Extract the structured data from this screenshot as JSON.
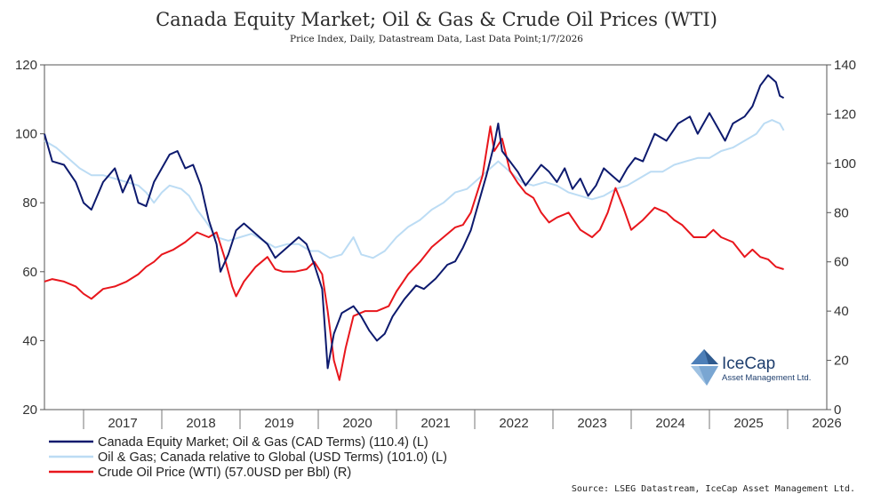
{
  "chart_data": {
    "type": "line",
    "title": "Canada Equity Market; Oil & Gas & Crude Oil Prices (WTI)",
    "subtitle": "Price Index, Daily, Datastream Data, Last Data Point;1/7/2026",
    "x_ticks": [
      "2017",
      "2018",
      "2019",
      "2020",
      "2021",
      "2022",
      "2023",
      "2024",
      "2025",
      "2026"
    ],
    "x_range": [
      2016.5,
      2026.5
    ],
    "y_left": {
      "range": [
        20,
        120
      ],
      "ticks": [
        20,
        40,
        60,
        80,
        100,
        120
      ]
    },
    "y_right": {
      "range": [
        0,
        140
      ],
      "ticks": [
        0,
        20,
        40,
        60,
        80,
        100,
        120,
        140
      ]
    },
    "grid": false,
    "legend_position": "bottom-left",
    "series": [
      {
        "name": "Canada Equity Market; Oil & Gas (CAD Terms) (110.4) (L)",
        "axis": "left",
        "color": "#0d1a6e",
        "points": [
          [
            2016.5,
            100
          ],
          [
            2016.6,
            92
          ],
          [
            2016.75,
            91
          ],
          [
            2016.9,
            86
          ],
          [
            2017.0,
            80
          ],
          [
            2017.1,
            78
          ],
          [
            2017.25,
            86
          ],
          [
            2017.4,
            90
          ],
          [
            2017.5,
            83
          ],
          [
            2017.6,
            88
          ],
          [
            2017.7,
            80
          ],
          [
            2017.8,
            79
          ],
          [
            2017.9,
            86
          ],
          [
            2018.0,
            90
          ],
          [
            2018.1,
            94
          ],
          [
            2018.2,
            95
          ],
          [
            2018.3,
            90
          ],
          [
            2018.4,
            91
          ],
          [
            2018.5,
            85
          ],
          [
            2018.6,
            75
          ],
          [
            2018.7,
            68
          ],
          [
            2018.75,
            60
          ],
          [
            2018.85,
            65
          ],
          [
            2018.95,
            72
          ],
          [
            2019.05,
            74
          ],
          [
            2019.15,
            72
          ],
          [
            2019.25,
            70
          ],
          [
            2019.35,
            68
          ],
          [
            2019.45,
            64
          ],
          [
            2019.55,
            66
          ],
          [
            2019.65,
            68
          ],
          [
            2019.75,
            70
          ],
          [
            2019.85,
            68
          ],
          [
            2019.95,
            62
          ],
          [
            2020.05,
            55
          ],
          [
            2020.12,
            32
          ],
          [
            2020.2,
            42
          ],
          [
            2020.3,
            48
          ],
          [
            2020.45,
            50
          ],
          [
            2020.55,
            47
          ],
          [
            2020.65,
            43
          ],
          [
            2020.75,
            40
          ],
          [
            2020.85,
            42
          ],
          [
            2020.95,
            47
          ],
          [
            2021.1,
            52
          ],
          [
            2021.25,
            56
          ],
          [
            2021.35,
            55
          ],
          [
            2021.5,
            58
          ],
          [
            2021.65,
            62
          ],
          [
            2021.75,
            63
          ],
          [
            2021.85,
            67
          ],
          [
            2021.95,
            72
          ],
          [
            2022.05,
            80
          ],
          [
            2022.15,
            88
          ],
          [
            2022.25,
            97
          ],
          [
            2022.3,
            103
          ],
          [
            2022.35,
            95
          ],
          [
            2022.45,
            92
          ],
          [
            2022.55,
            89
          ],
          [
            2022.65,
            85
          ],
          [
            2022.75,
            88
          ],
          [
            2022.85,
            91
          ],
          [
            2022.95,
            89
          ],
          [
            2023.05,
            86
          ],
          [
            2023.15,
            90
          ],
          [
            2023.25,
            84
          ],
          [
            2023.35,
            87
          ],
          [
            2023.45,
            82
          ],
          [
            2023.55,
            85
          ],
          [
            2023.65,
            90
          ],
          [
            2023.75,
            88
          ],
          [
            2023.85,
            86
          ],
          [
            2023.95,
            90
          ],
          [
            2024.05,
            93
          ],
          [
            2024.15,
            92
          ],
          [
            2024.3,
            100
          ],
          [
            2024.45,
            98
          ],
          [
            2024.6,
            103
          ],
          [
            2024.75,
            105
          ],
          [
            2024.85,
            100
          ],
          [
            2025.0,
            106
          ],
          [
            2025.1,
            102
          ],
          [
            2025.2,
            98
          ],
          [
            2025.3,
            103
          ],
          [
            2025.45,
            105
          ],
          [
            2025.55,
            108
          ],
          [
            2025.65,
            114
          ],
          [
            2025.75,
            117
          ],
          [
            2025.85,
            115
          ],
          [
            2025.9,
            111
          ],
          [
            2025.95,
            110.4
          ]
        ]
      },
      {
        "name": "Oil & Gas; Canada relative to Global (USD Terms) (101.0) (L)",
        "axis": "left",
        "color": "#bcdcf4",
        "points": [
          [
            2016.5,
            98
          ],
          [
            2016.65,
            96
          ],
          [
            2016.8,
            93
          ],
          [
            2016.95,
            90
          ],
          [
            2017.1,
            88
          ],
          [
            2017.25,
            88
          ],
          [
            2017.4,
            87
          ],
          [
            2017.55,
            86
          ],
          [
            2017.7,
            85
          ],
          [
            2017.8,
            83
          ],
          [
            2017.9,
            80
          ],
          [
            2018.0,
            83
          ],
          [
            2018.1,
            85
          ],
          [
            2018.25,
            84
          ],
          [
            2018.35,
            82
          ],
          [
            2018.45,
            78
          ],
          [
            2018.55,
            75
          ],
          [
            2018.7,
            70
          ],
          [
            2018.85,
            69
          ],
          [
            2019.0,
            70
          ],
          [
            2019.15,
            71
          ],
          [
            2019.3,
            69
          ],
          [
            2019.45,
            67
          ],
          [
            2019.6,
            68
          ],
          [
            2019.75,
            68
          ],
          [
            2019.9,
            66
          ],
          [
            2020.0,
            66
          ],
          [
            2020.15,
            64
          ],
          [
            2020.3,
            65
          ],
          [
            2020.45,
            70
          ],
          [
            2020.55,
            65
          ],
          [
            2020.7,
            64
          ],
          [
            2020.85,
            66
          ],
          [
            2021.0,
            70
          ],
          [
            2021.15,
            73
          ],
          [
            2021.3,
            75
          ],
          [
            2021.45,
            78
          ],
          [
            2021.6,
            80
          ],
          [
            2021.75,
            83
          ],
          [
            2021.9,
            84
          ],
          [
            2022.05,
            87
          ],
          [
            2022.2,
            90
          ],
          [
            2022.3,
            92
          ],
          [
            2022.45,
            89
          ],
          [
            2022.6,
            86
          ],
          [
            2022.75,
            85
          ],
          [
            2022.9,
            86
          ],
          [
            2023.05,
            85
          ],
          [
            2023.2,
            83
          ],
          [
            2023.35,
            82
          ],
          [
            2023.5,
            81
          ],
          [
            2023.65,
            82
          ],
          [
            2023.8,
            84
          ],
          [
            2023.95,
            85
          ],
          [
            2024.1,
            87
          ],
          [
            2024.25,
            89
          ],
          [
            2024.4,
            89
          ],
          [
            2024.55,
            91
          ],
          [
            2024.7,
            92
          ],
          [
            2024.85,
            93
          ],
          [
            2025.0,
            93
          ],
          [
            2025.15,
            95
          ],
          [
            2025.3,
            96
          ],
          [
            2025.45,
            98
          ],
          [
            2025.6,
            100
          ],
          [
            2025.7,
            103
          ],
          [
            2025.8,
            104
          ],
          [
            2025.9,
            103
          ],
          [
            2025.95,
            101
          ]
        ]
      },
      {
        "name": "Crude Oil Price (WTI) (57.0USD per Bbl) (R)",
        "axis": "right",
        "color": "#e8161c",
        "points": [
          [
            2016.5,
            52
          ],
          [
            2016.6,
            53
          ],
          [
            2016.75,
            52
          ],
          [
            2016.9,
            50
          ],
          [
            2017.0,
            47
          ],
          [
            2017.1,
            45
          ],
          [
            2017.25,
            49
          ],
          [
            2017.4,
            50
          ],
          [
            2017.55,
            52
          ],
          [
            2017.7,
            55
          ],
          [
            2017.8,
            58
          ],
          [
            2017.9,
            60
          ],
          [
            2018.0,
            63
          ],
          [
            2018.15,
            65
          ],
          [
            2018.3,
            68
          ],
          [
            2018.45,
            72
          ],
          [
            2018.6,
            70
          ],
          [
            2018.7,
            72
          ],
          [
            2018.8,
            62
          ],
          [
            2018.9,
            50
          ],
          [
            2018.95,
            46
          ],
          [
            2019.05,
            52
          ],
          [
            2019.2,
            58
          ],
          [
            2019.35,
            62
          ],
          [
            2019.45,
            57
          ],
          [
            2019.55,
            56
          ],
          [
            2019.7,
            56
          ],
          [
            2019.85,
            57
          ],
          [
            2019.95,
            60
          ],
          [
            2020.05,
            55
          ],
          [
            2020.12,
            40
          ],
          [
            2020.2,
            20
          ],
          [
            2020.27,
            12
          ],
          [
            2020.35,
            25
          ],
          [
            2020.45,
            38
          ],
          [
            2020.6,
            40
          ],
          [
            2020.75,
            40
          ],
          [
            2020.9,
            42
          ],
          [
            2021.0,
            48
          ],
          [
            2021.15,
            55
          ],
          [
            2021.3,
            60
          ],
          [
            2021.45,
            66
          ],
          [
            2021.6,
            70
          ],
          [
            2021.75,
            74
          ],
          [
            2021.85,
            75
          ],
          [
            2021.95,
            80
          ],
          [
            2022.1,
            95
          ],
          [
            2022.2,
            115
          ],
          [
            2022.25,
            105
          ],
          [
            2022.35,
            110
          ],
          [
            2022.45,
            97
          ],
          [
            2022.55,
            92
          ],
          [
            2022.65,
            88
          ],
          [
            2022.75,
            86
          ],
          [
            2022.85,
            80
          ],
          [
            2022.95,
            76
          ],
          [
            2023.05,
            78
          ],
          [
            2023.2,
            80
          ],
          [
            2023.35,
            73
          ],
          [
            2023.5,
            70
          ],
          [
            2023.6,
            73
          ],
          [
            2023.7,
            80
          ],
          [
            2023.8,
            90
          ],
          [
            2023.9,
            82
          ],
          [
            2024.0,
            73
          ],
          [
            2024.15,
            77
          ],
          [
            2024.3,
            82
          ],
          [
            2024.45,
            80
          ],
          [
            2024.55,
            77
          ],
          [
            2024.65,
            75
          ],
          [
            2024.8,
            70
          ],
          [
            2024.95,
            70
          ],
          [
            2025.05,
            73
          ],
          [
            2025.15,
            70
          ],
          [
            2025.3,
            68
          ],
          [
            2025.45,
            62
          ],
          [
            2025.55,
            65
          ],
          [
            2025.65,
            62
          ],
          [
            2025.75,
            61
          ],
          [
            2025.85,
            58
          ],
          [
            2025.95,
            57
          ]
        ]
      }
    ]
  },
  "logo": {
    "name": "IceCap",
    "sub": "Asset Management Ltd."
  },
  "source": "Source: LSEG Datastream, IceCap Asset Management Ltd."
}
